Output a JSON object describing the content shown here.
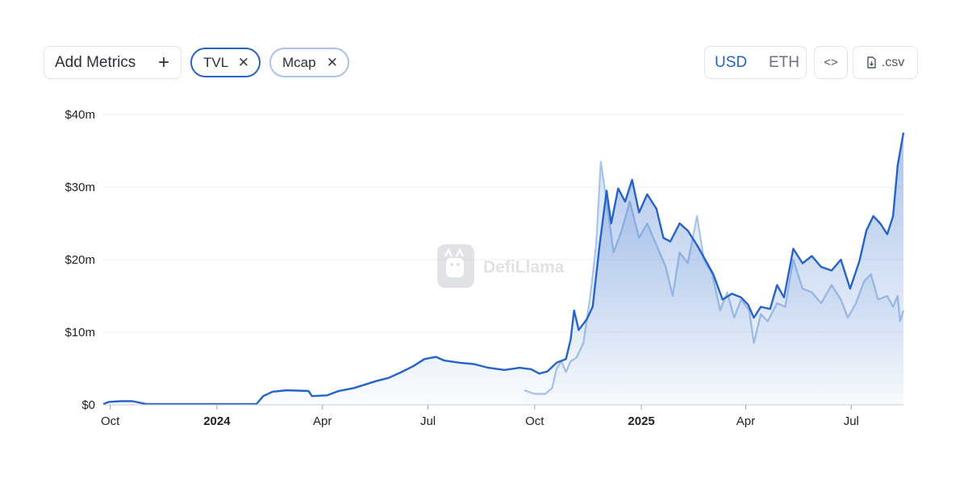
{
  "toolbar": {
    "add_metrics_label": "Add Metrics",
    "add_icon": "plus-icon",
    "chips": [
      {
        "label": "TVL",
        "icon": "close-icon",
        "color": "#2563c9"
      },
      {
        "label": "Mcap",
        "icon": "close-icon",
        "color": "#a9c4ea"
      }
    ],
    "currency_options": [
      "USD",
      "ETH"
    ],
    "currency_selected": "USD",
    "embed_icon": "code-icon",
    "csv_label": ".csv",
    "csv_icon": "file-download-icon"
  },
  "watermark": {
    "text": "DefiLlama",
    "icon": "llama-logo-icon"
  },
  "chart_data": {
    "type": "area",
    "yticks": [
      "$0",
      "$10m",
      "$20m",
      "$30m",
      "$40m"
    ],
    "ylim": [
      0,
      40
    ],
    "xticks": [
      {
        "label": "Oct",
        "bold": false
      },
      {
        "label": "2024",
        "bold": true
      },
      {
        "label": "Apr",
        "bold": false
      },
      {
        "label": "Jul",
        "bold": false
      },
      {
        "label": "Oct",
        "bold": false
      },
      {
        "label": "2025",
        "bold": true
      },
      {
        "label": "Apr",
        "bold": false
      },
      {
        "label": "Jul",
        "bold": false
      }
    ],
    "grid": true,
    "colors": {
      "tvl": "#2563c9",
      "mcap": "#a9c4ea",
      "grid": "#eceef1"
    },
    "series": [
      {
        "name": "TVL",
        "points": [
          [
            "2023-09-25",
            0.1
          ],
          [
            "2023-09-30",
            0.4
          ],
          [
            "2023-10-10",
            0.5
          ],
          [
            "2023-10-20",
            0.5
          ],
          [
            "2023-11-01",
            0.1
          ],
          [
            "2023-12-15",
            0.1
          ],
          [
            "2024-01-20",
            0.1
          ],
          [
            "2024-02-04",
            0.1
          ],
          [
            "2024-02-10",
            1.2
          ],
          [
            "2024-02-18",
            1.8
          ],
          [
            "2024-03-01",
            2.0
          ],
          [
            "2024-03-20",
            1.9
          ],
          [
            "2024-03-23",
            1.2
          ],
          [
            "2024-04-05",
            1.3
          ],
          [
            "2024-04-15",
            1.9
          ],
          [
            "2024-04-28",
            2.3
          ],
          [
            "2024-05-08",
            2.8
          ],
          [
            "2024-05-18",
            3.3
          ],
          [
            "2024-05-28",
            3.7
          ],
          [
            "2024-06-08",
            4.5
          ],
          [
            "2024-06-18",
            5.3
          ],
          [
            "2024-06-28",
            6.3
          ],
          [
            "2024-07-08",
            6.6
          ],
          [
            "2024-07-15",
            6.1
          ],
          [
            "2024-07-28",
            5.8
          ],
          [
            "2024-08-10",
            5.6
          ],
          [
            "2024-08-22",
            5.1
          ],
          [
            "2024-09-05",
            4.8
          ],
          [
            "2024-09-18",
            5.1
          ],
          [
            "2024-09-28",
            4.9
          ],
          [
            "2024-10-05",
            4.3
          ],
          [
            "2024-10-12",
            4.6
          ],
          [
            "2024-10-20",
            5.8
          ],
          [
            "2024-10-28",
            6.3
          ],
          [
            "2024-11-01",
            9.0
          ],
          [
            "2024-11-04",
            13.0
          ],
          [
            "2024-11-08",
            10.3
          ],
          [
            "2024-11-15",
            11.8
          ],
          [
            "2024-11-20",
            13.5
          ],
          [
            "2024-11-26",
            22.0
          ],
          [
            "2024-12-02",
            29.5
          ],
          [
            "2024-12-06",
            25.0
          ],
          [
            "2024-12-12",
            29.8
          ],
          [
            "2024-12-18",
            28.0
          ],
          [
            "2024-12-24",
            31.0
          ],
          [
            "2024-12-30",
            26.5
          ],
          [
            "2025-01-06",
            29.0
          ],
          [
            "2025-01-14",
            27.0
          ],
          [
            "2025-01-20",
            23.0
          ],
          [
            "2025-01-26",
            22.5
          ],
          [
            "2025-02-03",
            25.0
          ],
          [
            "2025-02-10",
            24.0
          ],
          [
            "2025-02-18",
            22.0
          ],
          [
            "2025-02-25",
            20.0
          ],
          [
            "2025-03-04",
            18.0
          ],
          [
            "2025-03-12",
            14.5
          ],
          [
            "2025-03-20",
            15.3
          ],
          [
            "2025-03-28",
            14.8
          ],
          [
            "2025-04-03",
            13.8
          ],
          [
            "2025-04-08",
            12.0
          ],
          [
            "2025-04-14",
            13.5
          ],
          [
            "2025-04-22",
            13.2
          ],
          [
            "2025-04-28",
            16.5
          ],
          [
            "2025-05-04",
            14.8
          ],
          [
            "2025-05-12",
            21.5
          ],
          [
            "2025-05-20",
            19.5
          ],
          [
            "2025-05-28",
            20.5
          ],
          [
            "2025-06-05",
            19.0
          ],
          [
            "2025-06-14",
            18.5
          ],
          [
            "2025-06-22",
            20.0
          ],
          [
            "2025-06-30",
            16.0
          ],
          [
            "2025-07-08",
            19.8
          ],
          [
            "2025-07-14",
            24.0
          ],
          [
            "2025-07-20",
            26.0
          ],
          [
            "2025-07-26",
            25.0
          ],
          [
            "2025-08-01",
            23.5
          ],
          [
            "2025-08-06",
            26.0
          ],
          [
            "2025-08-10",
            33.0
          ],
          [
            "2025-08-15",
            37.5
          ]
        ]
      },
      {
        "name": "Mcap",
        "points": [
          [
            "2024-09-22",
            2.0
          ],
          [
            "2024-10-01",
            1.5
          ],
          [
            "2024-10-10",
            1.5
          ],
          [
            "2024-10-16",
            2.3
          ],
          [
            "2024-10-20",
            5.0
          ],
          [
            "2024-10-24",
            6.0
          ],
          [
            "2024-10-28",
            4.5
          ],
          [
            "2024-11-01",
            6.0
          ],
          [
            "2024-11-06",
            6.5
          ],
          [
            "2024-11-12",
            8.5
          ],
          [
            "2024-11-18",
            15.0
          ],
          [
            "2024-11-23",
            22.0
          ],
          [
            "2024-11-27",
            33.5
          ],
          [
            "2024-12-02",
            28.0
          ],
          [
            "2024-12-08",
            21.0
          ],
          [
            "2024-12-15",
            24.0
          ],
          [
            "2024-12-22",
            28.0
          ],
          [
            "2024-12-30",
            23.0
          ],
          [
            "2025-01-06",
            25.0
          ],
          [
            "2025-01-14",
            22.0
          ],
          [
            "2025-01-22",
            19.0
          ],
          [
            "2025-01-28",
            15.0
          ],
          [
            "2025-02-03",
            21.0
          ],
          [
            "2025-02-10",
            19.5
          ],
          [
            "2025-02-18",
            26.0
          ],
          [
            "2025-02-24",
            20.0
          ],
          [
            "2025-03-03",
            18.0
          ],
          [
            "2025-03-10",
            13.0
          ],
          [
            "2025-03-16",
            15.5
          ],
          [
            "2025-03-22",
            12.0
          ],
          [
            "2025-03-28",
            14.5
          ],
          [
            "2025-04-04",
            13.0
          ],
          [
            "2025-04-08",
            8.5
          ],
          [
            "2025-04-14",
            12.5
          ],
          [
            "2025-04-20",
            11.5
          ],
          [
            "2025-04-28",
            14.0
          ],
          [
            "2025-05-05",
            13.5
          ],
          [
            "2025-05-12",
            20.0
          ],
          [
            "2025-05-20",
            16.0
          ],
          [
            "2025-05-28",
            15.5
          ],
          [
            "2025-06-05",
            14.0
          ],
          [
            "2025-06-14",
            16.5
          ],
          [
            "2025-06-22",
            14.5
          ],
          [
            "2025-06-28",
            12.0
          ],
          [
            "2025-07-05",
            14.0
          ],
          [
            "2025-07-12",
            17.0
          ],
          [
            "2025-07-18",
            18.0
          ],
          [
            "2025-07-24",
            14.5
          ],
          [
            "2025-08-01",
            15.0
          ],
          [
            "2025-08-06",
            13.5
          ],
          [
            "2025-08-10",
            15.0
          ],
          [
            "2025-08-12",
            11.5
          ],
          [
            "2025-08-15",
            13.0
          ]
        ]
      }
    ]
  }
}
